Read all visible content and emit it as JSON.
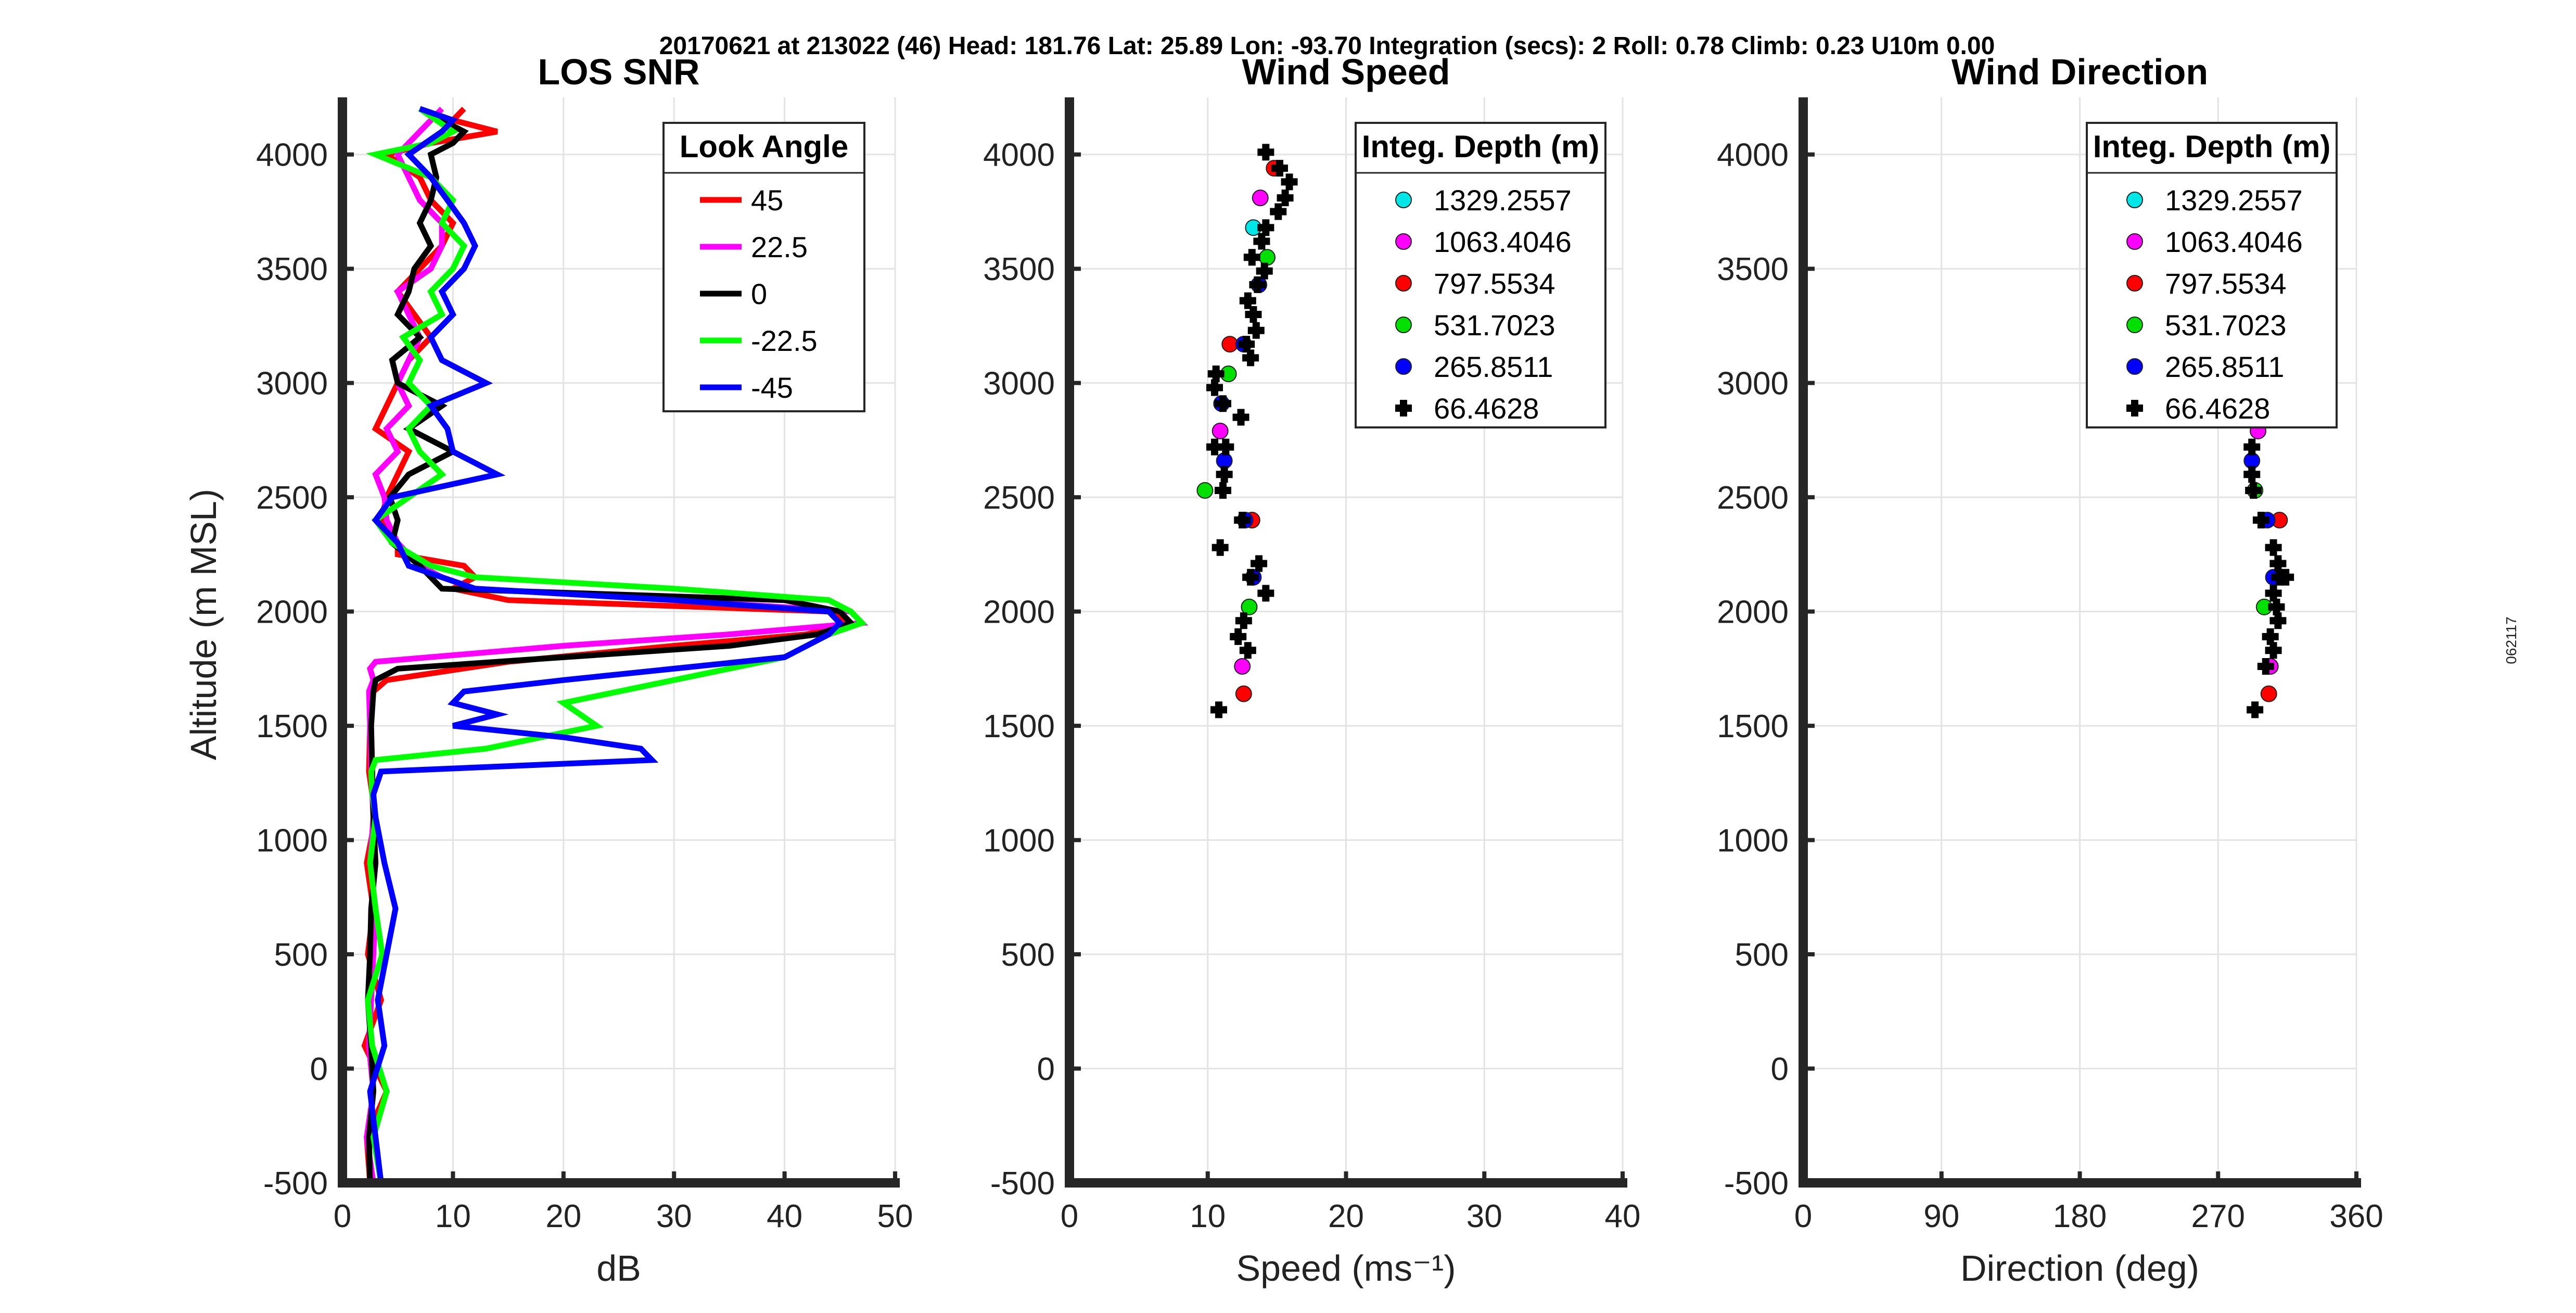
{
  "suptitle": "20170621 at 213022 (46)  Head: 181.76  Lat: 25.89  Lon: -93.70  Integration (secs): 2  Roll: 0.78  Climb: 0.23  U10m 0.00",
  "side_label": "062117",
  "chart_data": [
    {
      "type": "line",
      "title": "LOS SNR",
      "xlabel": "dB",
      "ylabel": "Altitude (m MSL)",
      "xlim": [
        0,
        50
      ],
      "ylim": [
        -500,
        4250
      ],
      "xticks": [
        "0",
        "10",
        "20",
        "30",
        "40",
        "50"
      ],
      "yticks": [
        "-500",
        "0",
        "500",
        "1000",
        "1500",
        "2000",
        "2500",
        "3000",
        "3500",
        "4000"
      ],
      "grid": true,
      "legend_title": "Look Angle",
      "legend_position": "top-right",
      "series": [
        {
          "name": "45",
          "color": "#ff0000",
          "y": [
            -500,
            -300,
            -100,
            100,
            300,
            500,
            700,
            900,
            1100,
            1300,
            1500,
            1650,
            1700,
            1780,
            1850,
            1900,
            1950,
            2000,
            2050,
            2100,
            2150,
            2200,
            2250,
            2300,
            2400,
            2500,
            2600,
            2700,
            2800,
            2900,
            3000,
            3100,
            3200,
            3300,
            3400,
            3500,
            3600,
            3700,
            3800,
            3900,
            4000,
            4050,
            4100,
            4150,
            4200
          ],
          "x": [
            2.5,
            2.2,
            4,
            2,
            3.5,
            2.3,
            2.8,
            2.2,
            3,
            2.4,
            2.5,
            2.8,
            4,
            15,
            30,
            42,
            46,
            44,
            15,
            10,
            12,
            11,
            5,
            5,
            3.5,
            4,
            5,
            6,
            3,
            4,
            5,
            6,
            8,
            6.5,
            5,
            7,
            9,
            10,
            8,
            7,
            4,
            8,
            14,
            10,
            11
          ]
        },
        {
          "name": "22.5",
          "color": "#ff00ff",
          "y": [
            -500,
            -300,
            -100,
            100,
            300,
            500,
            700,
            900,
            1100,
            1300,
            1500,
            1650,
            1700,
            1750,
            1780,
            1850,
            1900,
            1950,
            2000,
            2050,
            2100,
            2150,
            2200,
            2300,
            2400,
            2500,
            2600,
            2700,
            2800,
            2900,
            3000,
            3100,
            3200,
            3300,
            3400,
            3500,
            3600,
            3700,
            3800,
            3900,
            4000,
            4100,
            4200
          ],
          "x": [
            2.8,
            2.2,
            2.8,
            2.4,
            2.6,
            2.8,
            3,
            2.5,
            2.8,
            2.6,
            2.5,
            2.4,
            2.8,
            2.5,
            3,
            20,
            35,
            47,
            46,
            30,
            12,
            9,
            7,
            5,
            4,
            3.8,
            3,
            5,
            4,
            6,
            5,
            6,
            7,
            6,
            5,
            8,
            9,
            9,
            7,
            6,
            5,
            7,
            9
          ]
        },
        {
          "name": "0",
          "color": "#000000",
          "y": [
            -500,
            -300,
            -100,
            100,
            300,
            500,
            700,
            900,
            1100,
            1300,
            1500,
            1650,
            1700,
            1750,
            1800,
            1850,
            1900,
            1950,
            2000,
            2050,
            2100,
            2150,
            2200,
            2300,
            2400,
            2500,
            2600,
            2700,
            2800,
            2900,
            3000,
            3100,
            3200,
            3300,
            3400,
            3500,
            3600,
            3700,
            3800,
            3900,
            4000,
            4050,
            4100,
            4150,
            4200
          ],
          "x": [
            2.5,
            2.4,
            2.8,
            2.6,
            2.3,
            2.5,
            2.6,
            3,
            2.8,
            2.7,
            2.6,
            2.8,
            3,
            5,
            20,
            35,
            43,
            46,
            45,
            40,
            9,
            8,
            7,
            4.5,
            5,
            4.3,
            6,
            10,
            6,
            9,
            5,
            4.5,
            7,
            5,
            6,
            6.5,
            8,
            7,
            8,
            8.5,
            8,
            10,
            11,
            9,
            7
          ]
        },
        {
          "name": "-22.5",
          "color": "#00ff00",
          "y": [
            -500,
            -300,
            -100,
            100,
            300,
            500,
            700,
            900,
            1100,
            1200,
            1300,
            1350,
            1400,
            1500,
            1600,
            1700,
            1800,
            1900,
            1950,
            2000,
            2050,
            2100,
            2150,
            2200,
            2300,
            2400,
            2500,
            2600,
            2700,
            2800,
            2900,
            3000,
            3100,
            3200,
            3300,
            3400,
            3500,
            3600,
            3700,
            3800,
            3900,
            4000,
            4050,
            4100,
            4200
          ],
          "x": [
            3.5,
            2.8,
            4,
            2.7,
            2.3,
            3.6,
            3,
            2.5,
            3,
            2.7,
            2.6,
            3,
            13,
            23,
            20,
            30,
            40,
            44,
            47,
            46,
            44,
            30,
            12,
            8,
            4.5,
            3,
            6,
            9,
            7,
            6,
            8,
            6,
            7,
            5.5,
            9,
            8,
            10,
            11,
            9,
            10,
            8,
            3,
            8,
            10,
            7
          ]
        },
        {
          "name": "-45",
          "color": "#0000ff",
          "y": [
            -500,
            -300,
            -100,
            100,
            300,
            500,
            700,
            900,
            1100,
            1200,
            1300,
            1350,
            1400,
            1450,
            1500,
            1550,
            1600,
            1650,
            1700,
            1800,
            1900,
            1950,
            2000,
            2050,
            2100,
            2150,
            2200,
            2300,
            2400,
            2500,
            2600,
            2700,
            2800,
            2900,
            3000,
            3100,
            3200,
            3300,
            3400,
            3500,
            3600,
            3700,
            3800,
            3900,
            4000,
            4100,
            4150,
            4200
          ],
          "x": [
            3.5,
            3,
            2.5,
            3.8,
            3.2,
            4,
            4.8,
            3.8,
            3,
            2.8,
            3.5,
            28,
            27,
            20,
            10,
            14,
            10,
            11,
            20,
            40,
            44,
            45,
            44,
            30,
            12,
            9,
            6,
            5,
            3,
            4.5,
            14,
            10,
            9.5,
            8,
            13,
            9,
            8,
            10,
            9,
            11,
            12,
            11,
            9.5,
            8,
            6,
            9,
            10,
            7
          ]
        }
      ]
    },
    {
      "type": "scatter",
      "title": "Wind Speed",
      "xlabel": "Speed (ms⁻¹)",
      "ylabel": "",
      "xlim": [
        0,
        40
      ],
      "ylim": [
        -500,
        4250
      ],
      "xticks": [
        "0",
        "10",
        "20",
        "30",
        "40"
      ],
      "yticks": [
        "-500",
        "0",
        "500",
        "1000",
        "1500",
        "2000",
        "2500",
        "3000",
        "3500",
        "4000"
      ],
      "grid": true,
      "legend_title": "Integ. Depth (m)",
      "legend_position": "top-right",
      "series": [
        {
          "name": "1329.2557",
          "color": "#00e6e6",
          "marker": "circle",
          "points": [
            [
              13.3,
              3680
            ]
          ]
        },
        {
          "name": "1063.4046",
          "color": "#ff00ff",
          "marker": "circle",
          "points": [
            [
              13.8,
              3810
            ],
            [
              10.9,
              2790
            ],
            [
              12.5,
              1760
            ]
          ]
        },
        {
          "name": "797.5534",
          "color": "#ff0000",
          "marker": "circle",
          "points": [
            [
              14.8,
              3940
            ],
            [
              11.6,
              3170
            ],
            [
              13.2,
              2400
            ],
            [
              12.6,
              1640
            ]
          ]
        },
        {
          "name": "531.7023",
          "color": "#00e000",
          "marker": "circle",
          "points": [
            [
              14.3,
              3550
            ],
            [
              11.5,
              3040
            ],
            [
              9.8,
              2530
            ],
            [
              13,
              2020
            ]
          ]
        },
        {
          "name": "265.8511",
          "color": "#0000ff",
          "marker": "circle",
          "points": [
            [
              13.7,
              3430
            ],
            [
              12.6,
              3170
            ],
            [
              11,
              2910
            ],
            [
              11.2,
              2660
            ],
            [
              12.7,
              2400
            ],
            [
              13.3,
              2150
            ]
          ]
        },
        {
          "name": "66.4628",
          "color": "#000000",
          "marker": "plus",
          "points": [
            [
              14.2,
              4010
            ],
            [
              15.2,
              3940
            ],
            [
              15.9,
              3880
            ],
            [
              15.6,
              3810
            ],
            [
              15.1,
              3750
            ],
            [
              14.2,
              3680
            ],
            [
              13.9,
              3620
            ],
            [
              13.2,
              3550
            ],
            [
              14.1,
              3490
            ],
            [
              13.6,
              3430
            ],
            [
              12.9,
              3360
            ],
            [
              13.3,
              3300
            ],
            [
              13.5,
              3230
            ],
            [
              12.8,
              3170
            ],
            [
              13.1,
              3110
            ],
            [
              10.6,
              3040
            ],
            [
              10.5,
              2980
            ],
            [
              11.1,
              2910
            ],
            [
              12.4,
              2850
            ],
            [
              11.3,
              2720
            ],
            [
              10.5,
              2720
            ],
            [
              11.2,
              2600
            ],
            [
              11.1,
              2530
            ],
            [
              12.5,
              2400
            ],
            [
              10.9,
              2280
            ],
            [
              13.7,
              2210
            ],
            [
              13.1,
              2150
            ],
            [
              14.2,
              2080
            ],
            [
              12.6,
              1960
            ],
            [
              12.2,
              1890
            ],
            [
              12.9,
              1830
            ],
            [
              10.8,
              1570
            ]
          ]
        }
      ]
    },
    {
      "type": "scatter",
      "title": "Wind Direction",
      "xlabel": "Direction (deg)",
      "ylabel": "",
      "xlim": [
        0,
        360
      ],
      "ylim": [
        -500,
        4250
      ],
      "xticks": [
        "0",
        "90",
        "180",
        "270",
        "360"
      ],
      "yticks": [
        "-500",
        "0",
        "500",
        "1000",
        "1500",
        "2000",
        "2500",
        "3000",
        "3500",
        "4000"
      ],
      "grid": true,
      "legend_title": "Integ. Depth (m)",
      "legend_position": "top-right",
      "series": [
        {
          "name": "1329.2557",
          "color": "#00e6e6",
          "marker": "circle",
          "points": []
        },
        {
          "name": "1063.4046",
          "color": "#ff00ff",
          "marker": "circle",
          "points": [
            [
              296,
              2790
            ],
            [
              304,
              1760
            ]
          ]
        },
        {
          "name": "797.5534",
          "color": "#ff0000",
          "marker": "circle",
          "points": [
            [
              310,
              2400
            ],
            [
              303,
              1640
            ]
          ]
        },
        {
          "name": "531.7023",
          "color": "#00e000",
          "marker": "circle",
          "points": [
            [
              294,
              2530
            ],
            [
              300,
              2020
            ]
          ]
        },
        {
          "name": "265.8511",
          "color": "#0000ff",
          "marker": "circle",
          "points": [
            [
              292,
              2660
            ],
            [
              302,
              2400
            ],
            [
              306,
              2150
            ]
          ]
        },
        {
          "name": "66.4628",
          "color": "#000000",
          "marker": "plus",
          "points": [
            [
              292,
              2720
            ],
            [
              292,
              2600
            ],
            [
              293,
              2530
            ],
            [
              298,
              2400
            ],
            [
              306,
              2280
            ],
            [
              309,
              2210
            ],
            [
              310,
              2150
            ],
            [
              314,
              2150
            ],
            [
              306,
              2080
            ],
            [
              308,
              2020
            ],
            [
              309,
              1960
            ],
            [
              304,
              1890
            ],
            [
              306,
              1830
            ],
            [
              301,
              1760
            ],
            [
              294,
              1570
            ]
          ]
        }
      ]
    }
  ]
}
